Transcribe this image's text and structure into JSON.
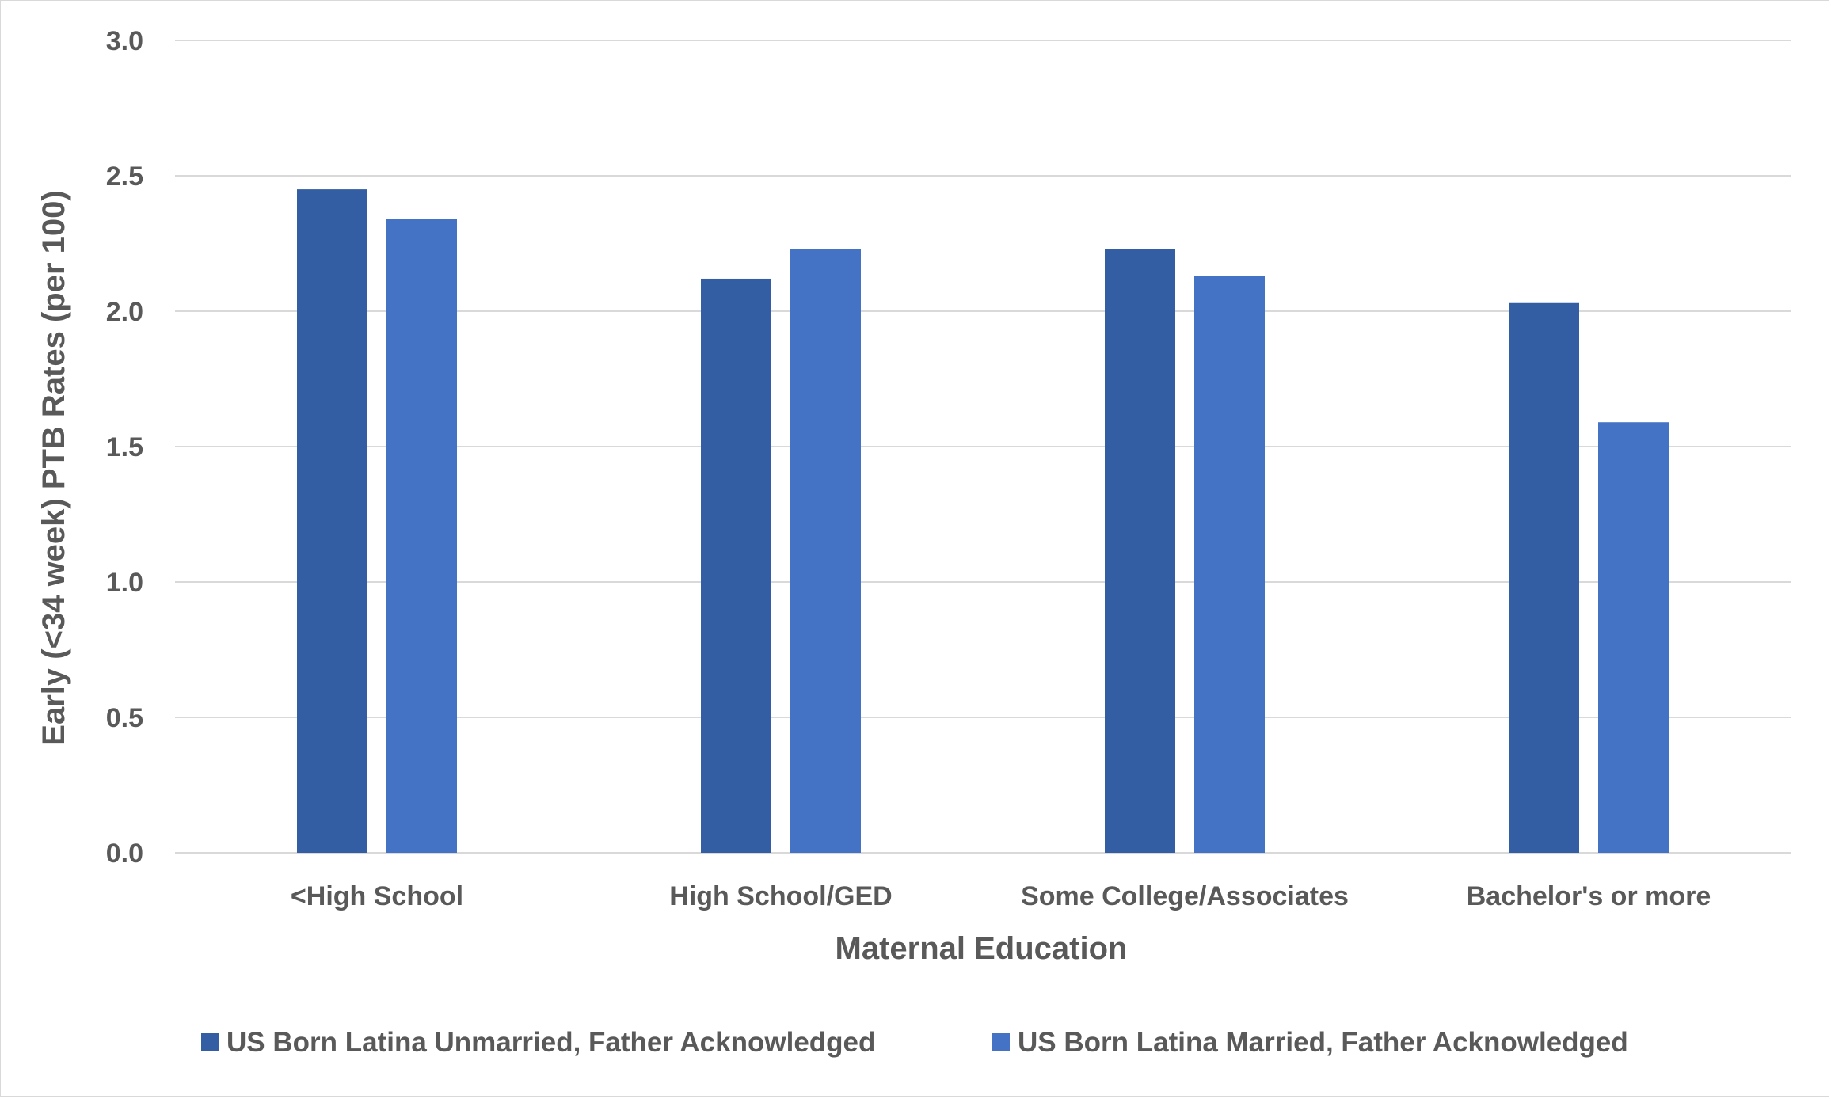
{
  "chart_data": {
    "type": "bar",
    "title": "",
    "xlabel": "Maternal Education",
    "ylabel": "Early (<34 week) PTB Rates (per 100)",
    "categories": [
      "<High School",
      "High School/GED",
      "Some College/Associates",
      "Bachelor's or more"
    ],
    "series": [
      {
        "name": "US Born Latina Unmarried, Father Acknowledged",
        "color": "#345ea3",
        "values": [
          2.45,
          2.12,
          2.23,
          2.03
        ]
      },
      {
        "name": "US Born Latina Married, Father Acknowledged",
        "color": "#4472c4",
        "values": [
          2.34,
          2.23,
          2.13,
          1.59
        ]
      }
    ],
    "ylim": [
      0,
      3.0
    ],
    "yticks": [
      "0.0",
      "0.5",
      "1.0",
      "1.5",
      "2.0",
      "2.5",
      "3.0"
    ],
    "grid": true,
    "legend_position": "bottom"
  }
}
